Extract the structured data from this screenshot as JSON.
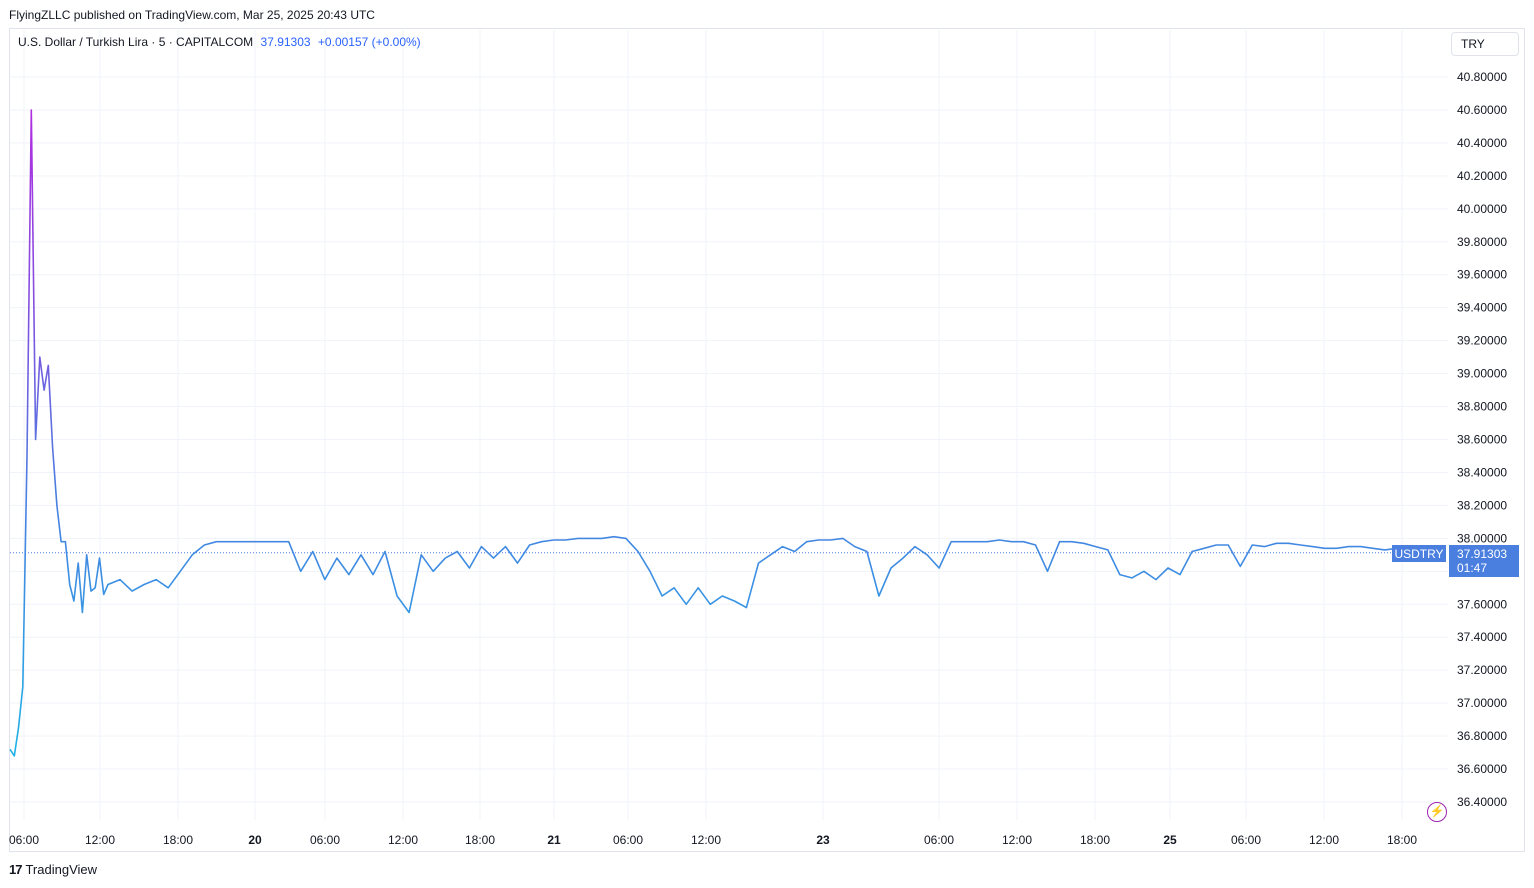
{
  "header": {
    "text": "FlyingZLLC published on TradingView.com, Mar 25, 2025 20:43 UTC"
  },
  "legend": {
    "symbol": "U.S. Dollar / Turkish Lira · 5 · CAPITALCOM",
    "value": "37.91303",
    "change": "+0.00157 (+0.00%)"
  },
  "currency_button": "TRY",
  "price_label": {
    "ticker": "USDTRY",
    "price": "37.91303",
    "countdown": "01:47"
  },
  "footer": {
    "logo": "17",
    "brand": "TradingView"
  },
  "colors": {
    "line": "#4a7fe0",
    "spike_top": "#b02de0",
    "spike_mid": "#7b56e0",
    "start": "#1fb0e6",
    "grid": "#f0f3fa"
  },
  "chart_data": {
    "type": "line",
    "ylim": [
      36.3,
      40.9
    ],
    "yticks": [
      "40.80000",
      "40.60000",
      "40.40000",
      "40.20000",
      "40.00000",
      "39.80000",
      "39.60000",
      "39.40000",
      "39.20000",
      "39.00000",
      "38.80000",
      "38.60000",
      "38.40000",
      "38.20000",
      "38.00000",
      "37.80000",
      "37.60000",
      "37.40000",
      "37.20000",
      "37.00000",
      "36.80000",
      "36.60000",
      "36.40000"
    ],
    "xticks": [
      {
        "label": "06:00",
        "bold": false,
        "i": 0
      },
      {
        "label": "12:00",
        "bold": false,
        "i": 12
      },
      {
        "label": "18:00",
        "bold": false,
        "i": 22
      },
      {
        "label": "20",
        "bold": true,
        "i": 32
      },
      {
        "label": "06:00",
        "bold": false,
        "i": 42
      },
      {
        "label": "12:00",
        "bold": false,
        "i": 52
      },
      {
        "label": "18:00",
        "bold": false,
        "i": 62
      },
      {
        "label": "21",
        "bold": true,
        "i": 71
      },
      {
        "label": "06:00",
        "bold": false,
        "i": 81
      },
      {
        "label": "12:00",
        "bold": false,
        "i": 91
      },
      {
        "label": "23",
        "bold": true,
        "i": 106
      },
      {
        "label": "06:00",
        "bold": false,
        "i": 121
      },
      {
        "label": "12:00",
        "bold": false,
        "i": 131
      },
      {
        "label": "18:00",
        "bold": false,
        "i": 141
      },
      {
        "label": "25",
        "bold": true,
        "i": 151
      },
      {
        "label": "06:00",
        "bold": false,
        "i": 161
      },
      {
        "label": "12:00",
        "bold": false,
        "i": 171
      },
      {
        "label": "18:00",
        "bold": false,
        "i": 181
      }
    ],
    "last_value": 37.91303,
    "x": [
      "Mar 19 05:00",
      "Mar 19 06:00",
      "Mar 19 06:30",
      "Mar 19 07:00",
      "Mar 19 07:15",
      "Mar 19 07:30",
      "Mar 19 07:45",
      "Mar 19 08:00",
      "Mar 19 08:30",
      "Mar 19 09:00",
      "Mar 19 09:30",
      "Mar 19 10:00",
      "Mar 19 11:00",
      "Mar 19 12:00",
      "Mar 19 13:00",
      "Mar 19 14:00",
      "Mar 19 15:00",
      "Mar 19 16:00",
      "Mar 19 17:00",
      "Mar 19 18:00",
      "Mar 19 19:00",
      "Mar 19 20:00",
      "Mar 19 21:00",
      "Mar 19 22:00"
    ],
    "values": [
      36.72,
      36.68,
      36.85,
      37.1,
      38.5,
      40.6,
      38.6,
      39.1,
      38.9,
      39.05,
      38.55,
      38.2,
      37.98,
      37.98,
      37.72,
      37.62,
      37.85,
      37.55,
      37.9,
      37.68,
      37.7,
      37.88,
      37.66,
      37.72
    ],
    "series_rest": [
      37.75,
      37.68,
      37.72,
      37.75,
      37.7,
      37.8,
      37.9,
      37.96,
      37.98,
      37.98,
      37.98,
      37.98,
      37.98,
      37.98,
      37.98,
      37.8,
      37.92,
      37.75,
      37.88,
      37.78,
      37.9,
      37.78,
      37.92,
      37.65,
      37.55,
      37.9,
      37.8,
      37.88,
      37.92,
      37.82,
      37.95,
      37.88,
      37.95,
      37.85,
      37.96,
      37.98,
      37.99,
      37.99,
      38.0,
      38.0,
      38.0,
      38.01,
      38.0,
      37.92,
      37.8,
      37.65,
      37.7,
      37.6,
      37.7,
      37.6,
      37.65,
      37.62,
      37.58,
      37.85,
      37.9,
      37.95,
      37.92,
      37.98,
      37.99,
      37.99,
      38.0,
      37.95,
      37.92,
      37.65,
      37.82,
      37.88,
      37.95,
      37.9,
      37.82,
      37.98,
      37.98,
      37.98,
      37.98,
      37.99,
      37.98,
      37.98,
      37.96,
      37.8,
      37.98,
      37.98,
      37.97,
      37.95,
      37.93,
      37.78,
      37.76,
      37.8,
      37.75,
      37.82,
      37.78,
      37.92,
      37.94,
      37.96,
      37.96,
      37.83,
      37.96,
      37.95,
      37.97,
      37.97,
      37.96,
      37.95,
      37.94,
      37.94,
      37.95,
      37.95,
      37.94,
      37.93,
      37.94,
      37.93,
      37.92,
      37.91303
    ]
  }
}
